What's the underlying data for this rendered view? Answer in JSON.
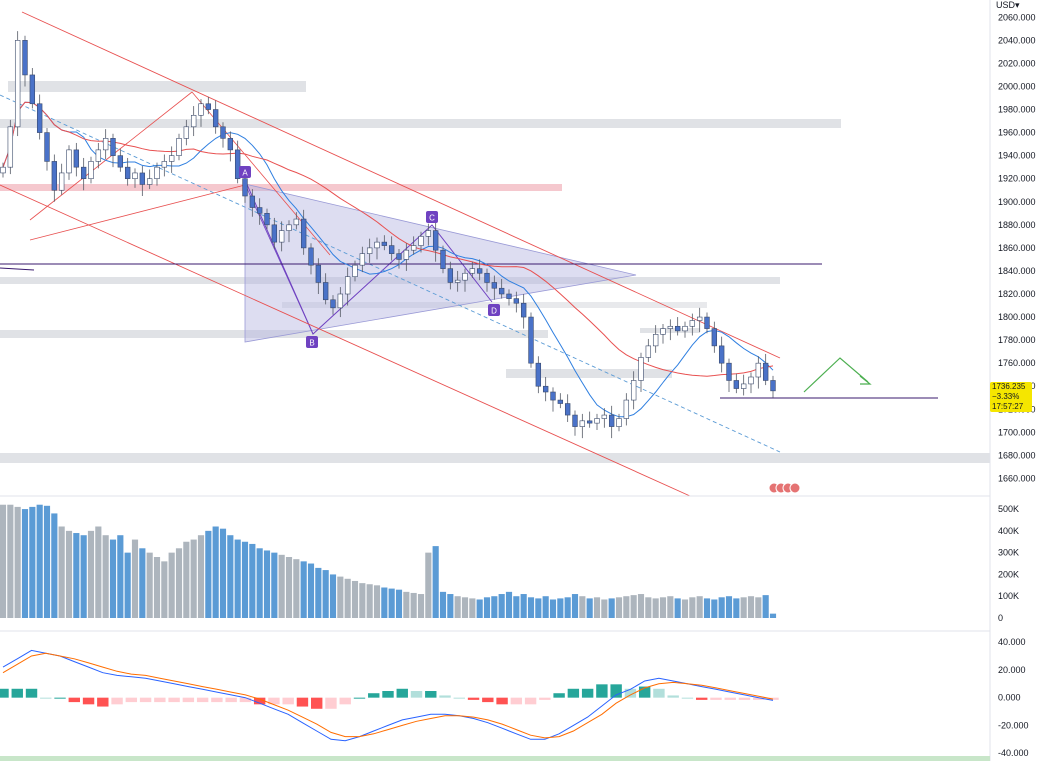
{
  "axis": {
    "currency": "USD",
    "price_ticks": [
      "2060.000",
      "2040.000",
      "2020.000",
      "2000.000",
      "1980.000",
      "1960.000",
      "1940.000",
      "1920.000",
      "1900.000",
      "1880.000",
      "1860.000",
      "1840.000",
      "1820.000",
      "1800.000",
      "1780.000",
      "1760.000",
      "1740.000",
      "1720.000",
      "1700.000",
      "1680.000",
      "1660.000"
    ],
    "volume_ticks": [
      "500K",
      "400K",
      "300K",
      "200K",
      "100K",
      "0"
    ],
    "macd_ticks": [
      "40.000",
      "20.000",
      "0.000",
      "-20.000",
      "-40.000"
    ]
  },
  "current_price": {
    "price": "1736.235",
    "change": "−3.33%",
    "countdown": "17:57:27"
  },
  "pattern_labels": [
    "A",
    "B",
    "C",
    "D"
  ],
  "colors": {
    "bull": "#5b9bd5",
    "bear": "#adb5bd",
    "ma_blue": "#2f7fe0",
    "ma_red": "#e85050",
    "channel": "#e85050",
    "triangle_fill": "#b3b3e0",
    "pattern_label": "#6f42c1",
    "macd_pos": "#26a69a",
    "macd_pos_light": "#b2dfdb",
    "macd_neg": "#ff5252",
    "macd_neg_light": "#ffcdd2",
    "arrow": "#4caf50",
    "price_box": "#f5e600"
  },
  "chart_data": {
    "type": "line",
    "instrument_timeframe": "daily",
    "price_series_close": [
      1930,
      1965,
      2040,
      2010,
      1985,
      1960,
      1935,
      1910,
      1925,
      1945,
      1930,
      1920,
      1935,
      1945,
      1955,
      1940,
      1930,
      1920,
      1925,
      1915,
      1920,
      1930,
      1935,
      1940,
      1955,
      1965,
      1975,
      1985,
      1980,
      1965,
      1955,
      1945,
      1920,
      1905,
      1895,
      1890,
      1880,
      1865,
      1875,
      1880,
      1885,
      1860,
      1845,
      1830,
      1815,
      1808,
      1820,
      1835,
      1845,
      1855,
      1860,
      1865,
      1862,
      1855,
      1850,
      1858,
      1862,
      1870,
      1875,
      1858,
      1842,
      1830,
      1832,
      1838,
      1842,
      1838,
      1830,
      1825,
      1820,
      1816,
      1812,
      1800,
      1760,
      1740,
      1735,
      1728,
      1725,
      1715,
      1705,
      1710,
      1708,
      1712,
      1715,
      1705,
      1712,
      1728,
      1745,
      1765,
      1775,
      1785,
      1790,
      1792,
      1788,
      1792,
      1797,
      1800,
      1790,
      1775,
      1760,
      1745,
      1738,
      1742,
      1748,
      1760,
      1745,
      1736
    ],
    "volume_series_k": [
      520,
      520,
      510,
      500,
      510,
      520,
      515,
      480,
      420,
      400,
      390,
      380,
      400,
      420,
      380,
      360,
      380,
      300,
      360,
      320,
      300,
      280,
      260,
      300,
      320,
      350,
      360,
      380,
      400,
      420,
      410,
      380,
      360,
      350,
      340,
      320,
      310,
      300,
      290,
      280,
      270,
      260,
      250,
      230,
      220,
      200,
      190,
      180,
      170,
      160,
      155,
      150,
      140,
      135,
      130,
      120,
      115,
      110,
      300,
      330,
      120,
      110,
      100,
      95,
      90,
      85,
      95,
      100,
      110,
      120,
      100,
      110,
      95,
      90,
      100,
      85,
      90,
      95,
      110,
      100,
      90,
      95,
      85,
      90,
      95,
      100,
      105,
      110,
      95,
      90,
      95,
      100,
      90,
      85,
      95,
      100,
      90,
      85,
      95,
      100,
      90,
      95,
      100,
      95,
      105,
      20
    ],
    "macd": [
      22,
      28,
      34,
      32,
      30,
      26,
      22,
      18,
      16,
      15,
      14,
      12,
      10,
      8,
      6,
      4,
      2,
      0,
      -4,
      -8,
      -12,
      -18,
      -24,
      -30,
      -31,
      -28,
      -24,
      -20,
      -16,
      -14,
      -12,
      -12,
      -13,
      -15,
      -18,
      -22,
      -26,
      -30,
      -30,
      -26,
      -20,
      -14,
      -6,
      2,
      6,
      12,
      14,
      12,
      10,
      8,
      6,
      4,
      2,
      0,
      -2
    ],
    "macd_signal": [
      18,
      24,
      30,
      32,
      30,
      28,
      25,
      22,
      19,
      17,
      16,
      14,
      12,
      10,
      8,
      6,
      4,
      2,
      -1,
      -5,
      -9,
      -14,
      -19,
      -25,
      -28,
      -28,
      -26,
      -23,
      -20,
      -17,
      -15,
      -13,
      -13,
      -14,
      -16,
      -19,
      -23,
      -27,
      -29,
      -28,
      -24,
      -18,
      -12,
      -4,
      2,
      7,
      10,
      11,
      10,
      9,
      7,
      5,
      3,
      1,
      -1
    ],
    "ylim_price": [
      1650,
      2075
    ],
    "ylim_volume_k": [
      0,
      560
    ],
    "ylim_macd": [
      -42,
      48
    ],
    "horizontal_levels": [
      1845,
      1740
    ],
    "current_price": 1736.235
  }
}
